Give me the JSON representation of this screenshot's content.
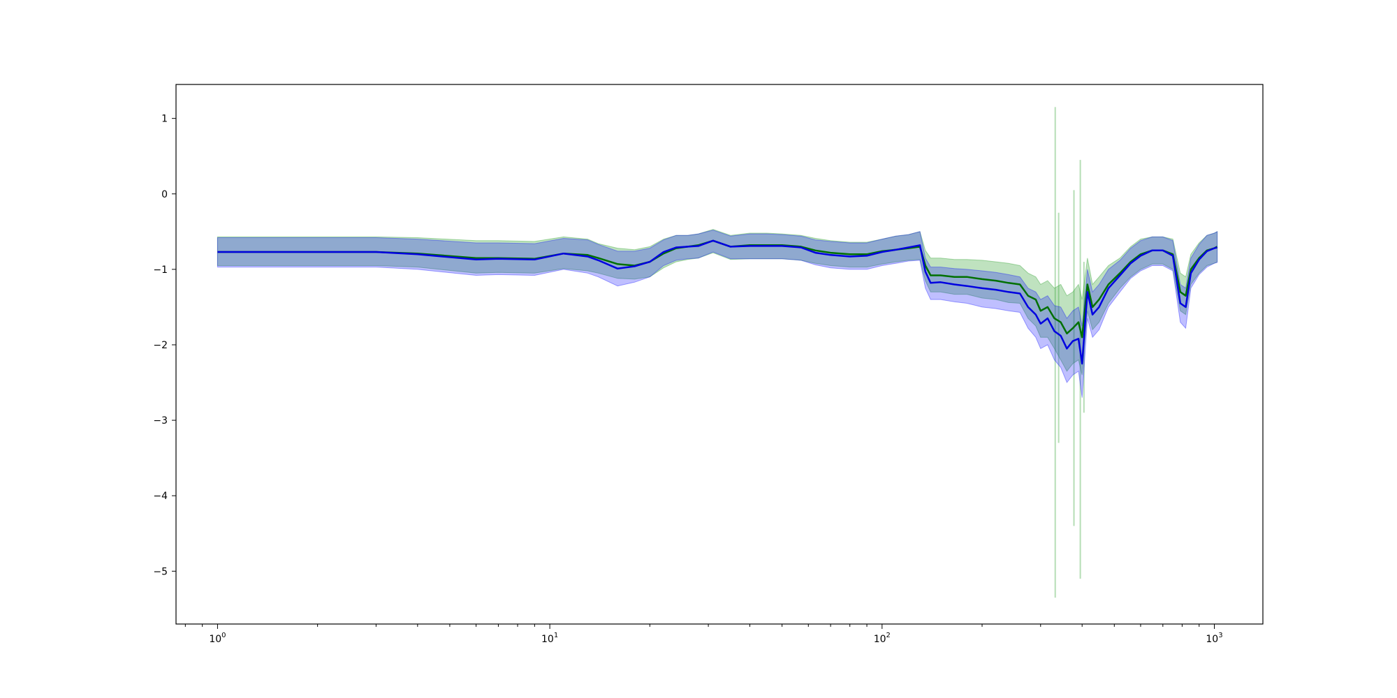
{
  "chart_data": {
    "type": "line",
    "xscale": "log",
    "xlim": [
      0.75,
      1400
    ],
    "ylim": [
      -5.7,
      1.45
    ],
    "grid": false,
    "title": "",
    "xlabel": "",
    "ylabel": "",
    "x_ticks": [
      {
        "value": 1,
        "base": "10",
        "exp": "0"
      },
      {
        "value": 10,
        "base": "10",
        "exp": "1"
      },
      {
        "value": 100,
        "base": "10",
        "exp": "2"
      },
      {
        "value": 1000,
        "base": "10",
        "exp": "3"
      }
    ],
    "y_ticks": [
      {
        "value": 1,
        "label": "1"
      },
      {
        "value": 0,
        "label": "0"
      },
      {
        "value": -1,
        "label": "−1"
      },
      {
        "value": -2,
        "label": "−2"
      },
      {
        "value": -3,
        "label": "−3"
      },
      {
        "value": -4,
        "label": "−4"
      },
      {
        "value": -5,
        "label": "−5"
      }
    ],
    "series": [
      {
        "color": "#007000",
        "band_color": "#2ca02c",
        "band_opacity": 0.3,
        "x": [
          1,
          3,
          4,
          6,
          7,
          9,
          11,
          13,
          14,
          16,
          18,
          20,
          22,
          24,
          26,
          28,
          31,
          35,
          40,
          45,
          50,
          57,
          63,
          70,
          80,
          90,
          100,
          110,
          120,
          130,
          135,
          140,
          150,
          165,
          180,
          200,
          220,
          240,
          260,
          275,
          290,
          300,
          315,
          330,
          345,
          360,
          375,
          390,
          400,
          415,
          430,
          450,
          480,
          520,
          560,
          600,
          650,
          700,
          750,
          790,
          820,
          850,
          900,
          950,
          1000,
          1020
        ],
        "y": [
          -0.77,
          -0.77,
          -0.79,
          -0.85,
          -0.85,
          -0.86,
          -0.79,
          -0.81,
          -0.85,
          -0.93,
          -0.95,
          -0.9,
          -0.79,
          -0.72,
          -0.7,
          -0.68,
          -0.62,
          -0.7,
          -0.68,
          -0.68,
          -0.68,
          -0.7,
          -0.75,
          -0.78,
          -0.8,
          -0.8,
          -0.76,
          -0.74,
          -0.72,
          -0.7,
          -0.95,
          -1.08,
          -1.08,
          -1.1,
          -1.1,
          -1.13,
          -1.15,
          -1.18,
          -1.2,
          -1.35,
          -1.4,
          -1.55,
          -1.5,
          -1.65,
          -1.7,
          -1.85,
          -1.78,
          -1.7,
          -1.9,
          -1.2,
          -1.5,
          -1.4,
          -1.2,
          -1.05,
          -0.9,
          -0.8,
          -0.75,
          -0.75,
          -0.8,
          -1.3,
          -1.35,
          -1.0,
          -0.85,
          -0.75,
          -0.72,
          -0.7
        ],
        "upper": [
          -0.57,
          -0.57,
          -0.58,
          -0.62,
          -0.62,
          -0.63,
          -0.57,
          -0.6,
          -0.66,
          -0.72,
          -0.74,
          -0.7,
          -0.6,
          -0.55,
          -0.55,
          -0.53,
          -0.47,
          -0.55,
          -0.52,
          -0.52,
          -0.53,
          -0.55,
          -0.59,
          -0.62,
          -0.64,
          -0.64,
          -0.6,
          -0.56,
          -0.54,
          -0.5,
          -0.75,
          -0.85,
          -0.85,
          -0.87,
          -0.87,
          -0.88,
          -0.9,
          -0.92,
          -0.95,
          -1.05,
          -1.1,
          -1.2,
          -1.15,
          -1.25,
          -1.2,
          -1.35,
          -1.3,
          -1.2,
          -1.4,
          -0.85,
          -1.2,
          -1.1,
          -0.95,
          -0.85,
          -0.7,
          -0.6,
          -0.57,
          -0.57,
          -0.6,
          -1.05,
          -1.1,
          -0.8,
          -0.65,
          -0.55,
          -0.52,
          -0.5
        ],
        "lower": [
          -0.95,
          -0.95,
          -0.97,
          -1.05,
          -1.04,
          -1.05,
          -0.99,
          -1.02,
          -1.05,
          -1.12,
          -1.13,
          -1.1,
          -0.98,
          -0.9,
          -0.87,
          -0.85,
          -0.78,
          -0.87,
          -0.86,
          -0.86,
          -0.86,
          -0.88,
          -0.92,
          -0.95,
          -0.97,
          -0.97,
          -0.93,
          -0.9,
          -0.88,
          -0.87,
          -1.15,
          -1.3,
          -1.3,
          -1.33,
          -1.33,
          -1.38,
          -1.4,
          -1.44,
          -1.45,
          -1.65,
          -1.75,
          -1.9,
          -1.9,
          -2.05,
          -2.2,
          -2.35,
          -2.25,
          -2.2,
          -2.4,
          -1.55,
          -1.8,
          -1.7,
          -1.45,
          -1.25,
          -1.1,
          -1.0,
          -0.93,
          -0.93,
          -1.0,
          -1.55,
          -1.6,
          -1.2,
          -1.05,
          -0.95,
          -0.92,
          -0.9
        ],
        "spikes": [
          {
            "x": 332,
            "top": 1.15,
            "bottom": -5.35
          },
          {
            "x": 340,
            "top": -0.25,
            "bottom": -3.3
          },
          {
            "x": 378,
            "top": 0.05,
            "bottom": -4.4
          },
          {
            "x": 395,
            "top": 0.45,
            "bottom": -5.1
          },
          {
            "x": 405,
            "top": -0.9,
            "bottom": -2.9
          }
        ]
      },
      {
        "color": "#0000e0",
        "band_color": "#0000ff",
        "band_opacity": 0.25,
        "x": [
          1,
          3,
          4,
          6,
          7,
          9,
          11,
          13,
          14,
          16,
          18,
          20,
          22,
          24,
          26,
          28,
          31,
          35,
          40,
          45,
          50,
          57,
          63,
          70,
          80,
          90,
          100,
          110,
          120,
          130,
          135,
          140,
          150,
          165,
          180,
          200,
          220,
          240,
          260,
          275,
          290,
          300,
          315,
          330,
          345,
          360,
          375,
          390,
          400,
          415,
          430,
          450,
          480,
          520,
          560,
          600,
          650,
          700,
          750,
          790,
          820,
          850,
          900,
          950,
          1000,
          1020
        ],
        "y": [
          -0.77,
          -0.77,
          -0.8,
          -0.87,
          -0.86,
          -0.87,
          -0.79,
          -0.83,
          -0.88,
          -0.99,
          -0.96,
          -0.9,
          -0.77,
          -0.71,
          -0.7,
          -0.69,
          -0.62,
          -0.7,
          -0.69,
          -0.69,
          -0.69,
          -0.71,
          -0.78,
          -0.81,
          -0.83,
          -0.82,
          -0.77,
          -0.74,
          -0.71,
          -0.68,
          -1.03,
          -1.18,
          -1.17,
          -1.2,
          -1.22,
          -1.25,
          -1.27,
          -1.3,
          -1.32,
          -1.5,
          -1.6,
          -1.72,
          -1.65,
          -1.82,
          -1.88,
          -2.05,
          -1.95,
          -1.92,
          -2.25,
          -1.3,
          -1.6,
          -1.5,
          -1.25,
          -1.08,
          -0.92,
          -0.82,
          -0.75,
          -0.75,
          -0.82,
          -1.45,
          -1.5,
          -1.05,
          -0.87,
          -0.76,
          -0.72,
          -0.71
        ],
        "upper": [
          -0.58,
          -0.58,
          -0.6,
          -0.65,
          -0.65,
          -0.66,
          -0.59,
          -0.61,
          -0.67,
          -0.76,
          -0.76,
          -0.72,
          -0.61,
          -0.55,
          -0.55,
          -0.53,
          -0.48,
          -0.56,
          -0.53,
          -0.53,
          -0.54,
          -0.56,
          -0.61,
          -0.63,
          -0.65,
          -0.65,
          -0.6,
          -0.56,
          -0.54,
          -0.5,
          -0.85,
          -0.97,
          -0.97,
          -0.99,
          -1.0,
          -1.02,
          -1.04,
          -1.07,
          -1.1,
          -1.25,
          -1.3,
          -1.4,
          -1.35,
          -1.48,
          -1.5,
          -1.65,
          -1.55,
          -1.5,
          -1.75,
          -1.0,
          -1.3,
          -1.2,
          -1.0,
          -0.88,
          -0.72,
          -0.62,
          -0.57,
          -0.57,
          -0.62,
          -1.2,
          -1.25,
          -0.85,
          -0.67,
          -0.55,
          -0.52,
          -0.5
        ],
        "lower": [
          -0.97,
          -0.97,
          -1.0,
          -1.08,
          -1.07,
          -1.08,
          -1.0,
          -1.05,
          -1.1,
          -1.22,
          -1.17,
          -1.1,
          -0.95,
          -0.88,
          -0.86,
          -0.85,
          -0.77,
          -0.86,
          -0.86,
          -0.86,
          -0.86,
          -0.88,
          -0.94,
          -0.98,
          -1.0,
          -1.0,
          -0.95,
          -0.92,
          -0.89,
          -0.88,
          -1.25,
          -1.4,
          -1.4,
          -1.43,
          -1.45,
          -1.5,
          -1.52,
          -1.55,
          -1.57,
          -1.78,
          -1.9,
          -2.05,
          -2.0,
          -2.2,
          -2.3,
          -2.5,
          -2.4,
          -2.35,
          -2.7,
          -1.65,
          -1.9,
          -1.8,
          -1.5,
          -1.3,
          -1.12,
          -1.02,
          -0.95,
          -0.95,
          -1.02,
          -1.7,
          -1.78,
          -1.25,
          -1.07,
          -0.97,
          -0.92,
          -0.91
        ]
      }
    ]
  }
}
